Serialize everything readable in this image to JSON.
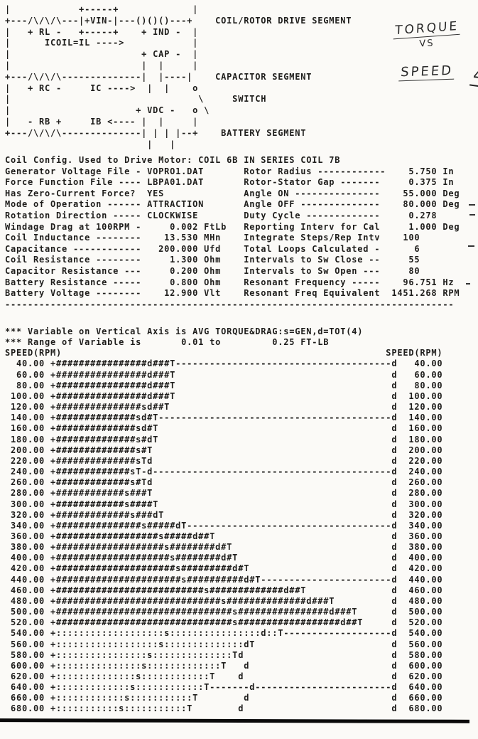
{
  "handwritten_note": {
    "line1": "TORQUE",
    "line2": "VS",
    "line3": "SPEED",
    "line4": "4"
  },
  "circuit_diagram": {
    "lines": [
      "|            +-----+             |",
      "+---/\\/\\/\\---|+VIN-|---()()()---+    COIL/ROTOR DRIVE SEGMENT",
      "|   + RL -   +-----+    + IND -  |",
      "|      ICOIL=IL ---->            |",
      "|                       + CAP -  |",
      "|                       |  |     |",
      "+---/\\/\\/\\--------------|  |----|    CAPACITOR SEGMENT",
      "|   + RC -     IC ---->  |  |    o",
      "|                                 \\     SWITCH",
      "|                      + VDC -   o \\",
      "|   - RB +     IB <---- |  |     |",
      "+---/\\/\\/\\--------------| | | |--+    BATTERY SEGMENT",
      "                         |   |"
    ]
  },
  "parameters": {
    "coil_config_line": "Coil Config. Used to Drive Motor: COIL 6B IN SERIES COIL 7B",
    "left": [
      {
        "label": "Generator Voltage File -",
        "value": "VOPRO1.DAT",
        "unit": "",
        "align": "left"
      },
      {
        "label": "Force Function File ----",
        "value": "LBPA01.DAT",
        "unit": "",
        "align": "left"
      },
      {
        "label": "Has Zero-Current Force? ",
        "value": "YES",
        "unit": "",
        "align": "left"
      },
      {
        "label": "Mode of Operation ------",
        "value": "ATTRACTION",
        "unit": "",
        "align": "left"
      },
      {
        "label": "Rotation Direction -----",
        "value": "CLOCKWISE",
        "unit": "",
        "align": "left"
      },
      {
        "label": "Windage Drag at 100RPM -",
        "value": "0.002",
        "unit": "FtLb",
        "align": "right"
      },
      {
        "label": "Coil Inductance --------",
        "value": "13.530",
        "unit": "MHn",
        "align": "right"
      },
      {
        "label": "Capacitance ------------",
        "value": "200.000",
        "unit": "Ufd",
        "align": "right"
      },
      {
        "label": "Coil Resistance --------",
        "value": "1.300",
        "unit": "Ohm",
        "align": "right"
      },
      {
        "label": "Capacitor Resistance ---",
        "value": "0.200",
        "unit": "Ohm",
        "align": "right"
      },
      {
        "label": "Battery Resistance -----",
        "value": "0.800",
        "unit": "Ohm",
        "align": "right"
      },
      {
        "label": "Battery Voltage --------",
        "value": "12.900",
        "unit": "Vlt",
        "align": "right"
      }
    ],
    "right": [
      {
        "label": "Rotor Radius ------------",
        "value": "5.750",
        "unit": "In",
        "align": "right"
      },
      {
        "label": "Rotor-Stator Gap -------",
        "value": "0.375",
        "unit": "In",
        "align": "right"
      },
      {
        "label": "Angle ON ---------------",
        "value": "55.000",
        "unit": "Deg",
        "align": "right"
      },
      {
        "label": "Angle OFF --------------",
        "value": "80.000",
        "unit": "Deg",
        "align": "right"
      },
      {
        "label": "Duty Cycle -------------",
        "value": "0.278",
        "unit": "",
        "align": "right"
      },
      {
        "label": "Reporting Interv for Cal",
        "value": "1.000",
        "unit": "Deg",
        "align": "right"
      },
      {
        "label": "Integrate Steps/Rep Intv",
        "value": "100",
        "unit": "",
        "align": "int"
      },
      {
        "label": "Total Loops Calculated -",
        "value": "6",
        "unit": "",
        "align": "int"
      },
      {
        "label": "Intervals to Sw Close --",
        "value": "55",
        "unit": "",
        "align": "int"
      },
      {
        "label": "Intervals to Sw Open ---",
        "value": "80",
        "unit": "",
        "align": "int"
      },
      {
        "label": "Resonant Frequency -----",
        "value": "96.751",
        "unit": "Hz",
        "align": "right"
      },
      {
        "label": "Resonant Freq Equivalent",
        "value": "1451.268",
        "unit": "RPM",
        "align": "right"
      }
    ],
    "separator_dashes": 79
  },
  "chart_data": {
    "type": "line",
    "format": "ascii-printout-plot",
    "variable_line": "*** Variable on Vertical Axis is AVG TORQUE&DRAG:s=GEN,d=TOT(4)",
    "range_prefix": "*** Range of Variable is",
    "range_min": "0.01",
    "range_max": "0.25",
    "range_unit": "FT-LB",
    "axis_label_left": "SPEED(RPM)",
    "axis_label_right": "SPEED(RPM)",
    "axis_range_ftlb": [
      0.01,
      0.25
    ],
    "series_legend": {
      "T": "AVG TORQUE",
      "s": "GEN",
      "d": "TOT(4)"
    },
    "speeds": [
      40,
      60,
      80,
      100,
      120,
      140,
      160,
      180,
      200,
      220,
      240,
      260,
      280,
      300,
      320,
      340,
      360,
      380,
      400,
      420,
      440,
      460,
      480,
      500,
      520,
      540,
      560,
      580,
      600,
      620,
      640,
      660,
      680
    ],
    "estimated_T_ftlb": [
      0.091,
      0.091,
      0.091,
      0.091,
      0.087,
      0.079,
      0.079,
      0.079,
      0.075,
      0.071,
      0.067,
      0.071,
      0.075,
      0.079,
      0.083,
      0.099,
      0.12,
      0.132,
      0.136,
      0.144,
      0.152,
      0.185,
      0.205,
      0.222,
      0.226,
      0.169,
      0.148,
      0.136,
      0.128,
      0.12,
      0.116,
      0.108,
      0.104
    ],
    "estimated_GEN_s_ftlb": [
      null,
      null,
      null,
      null,
      0.071,
      0.067,
      0.067,
      0.067,
      0.067,
      0.067,
      0.063,
      0.063,
      0.059,
      0.059,
      0.063,
      0.071,
      0.083,
      0.087,
      0.091,
      0.095,
      0.099,
      0.116,
      0.128,
      0.136,
      0.136,
      0.087,
      0.083,
      0.075,
      0.071,
      0.067,
      0.063,
      0.059,
      0.055
    ],
    "estimated_TOT_d_ftlb": [
      0.075,
      0.075,
      0.075,
      0.075,
      0.075,
      0.071,
      0.071,
      0.079,
      null,
      0.075,
      0.075,
      0.075,
      null,
      null,
      0.079,
      0.095,
      0.108,
      0.124,
      0.128,
      0.136,
      0.144,
      0.173,
      0.189,
      0.205,
      0.213,
      0.156,
      0.144,
      0.14,
      0.144,
      0.14,
      0.148,
      0.144,
      0.14
    ],
    "d_right_column_value_ftlb": 0.25,
    "rows": [
      {
        "speed": "40.00",
        "body": "+################d###T",
        "fill": "-"
      },
      {
        "speed": "60.00",
        "body": "+################d###T",
        "fill": " "
      },
      {
        "speed": "80.00",
        "body": "+################d###T",
        "fill": " "
      },
      {
        "speed": "100.00",
        "body": "+################d###T",
        "fill": " "
      },
      {
        "speed": "120.00",
        "body": "+###############sd##T",
        "fill": " "
      },
      {
        "speed": "140.00",
        "body": "+##############sd#T",
        "fill": "-"
      },
      {
        "speed": "160.00",
        "body": "+##############sd#T",
        "fill": " "
      },
      {
        "speed": "180.00",
        "body": "+##############s#dT",
        "fill": " "
      },
      {
        "speed": "200.00",
        "body": "+##############s#T",
        "fill": " "
      },
      {
        "speed": "220.00",
        "body": "+##############sTd",
        "fill": " "
      },
      {
        "speed": "240.00",
        "body": "+#############sT-d",
        "fill": "-"
      },
      {
        "speed": "260.00",
        "body": "+#############s#Td",
        "fill": " "
      },
      {
        "speed": "280.00",
        "body": "+############s###T",
        "fill": " "
      },
      {
        "speed": "300.00",
        "body": "+############s####T",
        "fill": " "
      },
      {
        "speed": "320.00",
        "body": "+#############s###dT",
        "fill": " "
      },
      {
        "speed": "340.00",
        "body": "+###############s#####dT",
        "fill": "-"
      },
      {
        "speed": "360.00",
        "body": "+##################s#####d##T",
        "fill": " "
      },
      {
        "speed": "380.00",
        "body": "+###################s########d#T",
        "fill": " "
      },
      {
        "speed": "400.00",
        "body": "+####################s########d#T",
        "fill": " "
      },
      {
        "speed": "420.00",
        "body": "+#####################s#########d#T",
        "fill": " "
      },
      {
        "speed": "440.00",
        "body": "+######################s##########d#T",
        "fill": "-"
      },
      {
        "speed": "460.00",
        "body": "+##########################s#############d##T",
        "fill": " "
      },
      {
        "speed": "480.00",
        "body": "+#############################s##############d###T",
        "fill": " "
      },
      {
        "speed": "500.00",
        "body": "+###############################s################d###T",
        "fill": " "
      },
      {
        "speed": "520.00",
        "body": "+###############################s##################d##T",
        "fill": " "
      },
      {
        "speed": "540.00",
        "body": "+:::::::::::::::::::s::::::::::::::::d::T",
        "fill": "-"
      },
      {
        "speed": "560.00",
        "body": "+::::::::::::::::::s::::::::::::::dT",
        "fill": " "
      },
      {
        "speed": "580.00",
        "body": "+::::::::::::::::s::::::::::::::Td",
        "fill": " "
      },
      {
        "speed": "600.00",
        "body": "+:::::::::::::::s:::::::::::::T   d",
        "fill": " "
      },
      {
        "speed": "620.00",
        "body": "+::::::::::::::s::::::::::::T    d",
        "fill": " "
      },
      {
        "speed": "640.00",
        "body": "+:::::::::::::s::::::::::::T-------d",
        "fill": "-"
      },
      {
        "speed": "660.00",
        "body": "+::::::::::::s:::::::::::T        d",
        "fill": " "
      },
      {
        "speed": "680.00",
        "body": "+:::::::::::s:::::::::::T        d",
        "fill": " "
      }
    ]
  }
}
